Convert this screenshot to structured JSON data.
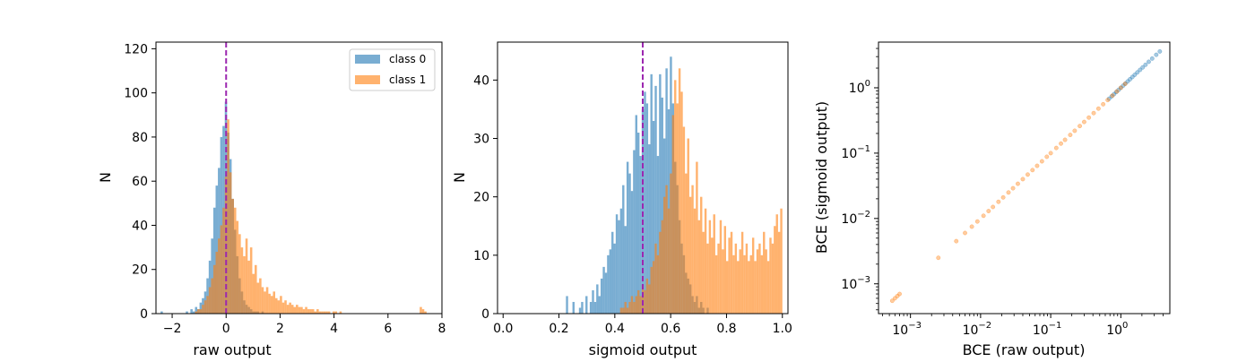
{
  "figure": {
    "panel_count": 3
  },
  "colors": {
    "class0": "#1f77b4",
    "class1": "#ff7f0e",
    "threshold_line": "#9c27b0",
    "axes": "#000000"
  },
  "chart_data": [
    {
      "type": "histogram",
      "title": "",
      "xlabel": "raw output",
      "ylabel": "N",
      "xlim": [
        -2.6,
        8.0
      ],
      "ylim": [
        0,
        123
      ],
      "xticks": [
        -2,
        0,
        2,
        4,
        6,
        8
      ],
      "xtick_labels": [
        "−2",
        "0",
        "2",
        "4",
        "6",
        "8"
      ],
      "yticks": [
        0,
        20,
        40,
        60,
        80,
        100,
        120
      ],
      "ytick_labels": [
        "0",
        "20",
        "40",
        "60",
        "80",
        "100",
        "120"
      ],
      "bin_range": [
        -2.6,
        7.6
      ],
      "bin_count": 120,
      "alpha": 0.6,
      "threshold": 0,
      "threshold_style": "dashed",
      "legend": {
        "placement": "top-right",
        "entries": [
          "class 0",
          "class 1"
        ]
      },
      "series": [
        {
          "name": "class 0",
          "color": "#1f77b4",
          "values": [
            0,
            0,
            1,
            0,
            0,
            0,
            0,
            0,
            0,
            0,
            0,
            0,
            0,
            1,
            0,
            2,
            1,
            3,
            2,
            5,
            7,
            10,
            16,
            24,
            34,
            48,
            58,
            66,
            80,
            85,
            96,
            82,
            70,
            52,
            38,
            26,
            16,
            10,
            6,
            4,
            3,
            2,
            1,
            1,
            1,
            0,
            1,
            0,
            0,
            0,
            0,
            0,
            0,
            0,
            0,
            0,
            0,
            0,
            0,
            0,
            0,
            0,
            0,
            0,
            0,
            0,
            0,
            0,
            0,
            0,
            0,
            0,
            0,
            0,
            0,
            0,
            0,
            0,
            0,
            0,
            0,
            0,
            0,
            0,
            0,
            0,
            0,
            0,
            0,
            0,
            0,
            0,
            0,
            0,
            0,
            0,
            0,
            0,
            0,
            0,
            0,
            0,
            0,
            0,
            0,
            0,
            0,
            0,
            0,
            0,
            0,
            0,
            0,
            0,
            0,
            0,
            0,
            0,
            0,
            0
          ]
        },
        {
          "name": "class 1",
          "color": "#ff7f0e",
          "values": [
            0,
            0,
            0,
            0,
            0,
            0,
            0,
            0,
            0,
            0,
            0,
            0,
            0,
            0,
            0,
            0,
            0,
            1,
            2,
            2,
            4,
            6,
            8,
            12,
            16,
            22,
            28,
            34,
            40,
            48,
            62,
            88,
            64,
            52,
            48,
            42,
            36,
            30,
            26,
            34,
            24,
            30,
            18,
            22,
            14,
            16,
            12,
            10,
            12,
            9,
            8,
            10,
            7,
            6,
            8,
            5,
            6,
            4,
            5,
            4,
            3,
            4,
            3,
            3,
            2,
            3,
            2,
            2,
            2,
            1,
            2,
            1,
            1,
            1,
            1,
            1,
            0,
            1,
            1,
            0,
            1,
            0,
            0,
            0,
            0,
            0,
            0,
            0,
            0,
            0,
            0,
            0,
            0,
            0,
            0,
            0,
            0,
            0,
            0,
            0,
            0,
            0,
            0,
            0,
            0,
            0,
            0,
            0,
            0,
            0,
            0,
            0,
            0,
            0,
            0,
            3,
            2,
            1,
            0,
            0
          ]
        }
      ]
    },
    {
      "type": "histogram",
      "title": "",
      "xlabel": "sigmoid output",
      "ylabel": "N",
      "xlim": [
        -0.02,
        1.02
      ],
      "ylim": [
        0,
        46.5
      ],
      "xticks": [
        0.0,
        0.2,
        0.4,
        0.6,
        0.8,
        1.0
      ],
      "xtick_labels": [
        "0.0",
        "0.2",
        "0.4",
        "0.6",
        "0.8",
        "1.0"
      ],
      "yticks": [
        0,
        10,
        20,
        30,
        40
      ],
      "ytick_labels": [
        "0",
        "10",
        "20",
        "30",
        "40"
      ],
      "bin_range": [
        0.07,
        1.0
      ],
      "bin_count": 120,
      "alpha": 0.6,
      "threshold": 0.5,
      "threshold_style": "dashed",
      "series": [
        {
          "name": "class 0",
          "color": "#1f77b4",
          "values": [
            0,
            0,
            0,
            0,
            0,
            0,
            0,
            0,
            0,
            0,
            0,
            0,
            0,
            0,
            0,
            0,
            0,
            0,
            0,
            0,
            3,
            0,
            0,
            2,
            0,
            0,
            1,
            2,
            0,
            3,
            0,
            2,
            4,
            2,
            5,
            3,
            6,
            8,
            7,
            10,
            11,
            14,
            12,
            17,
            16,
            18,
            22,
            15,
            26,
            24,
            21,
            28,
            34,
            31,
            27,
            35,
            38,
            36,
            29,
            41,
            33,
            39,
            27,
            41,
            37,
            30,
            42,
            35,
            44,
            36,
            26,
            22,
            16,
            12,
            10,
            7,
            6,
            5,
            3,
            2,
            3,
            1,
            2,
            1,
            0,
            1,
            0,
            0,
            0,
            0,
            0,
            0,
            0,
            0,
            0,
            0,
            0,
            0,
            0,
            0,
            0,
            0,
            0,
            0,
            0,
            0,
            0,
            0,
            0,
            0,
            0,
            0,
            0,
            0,
            0,
            0,
            0,
            0,
            0,
            0
          ]
        },
        {
          "name": "class 1",
          "color": "#ff7f0e",
          "values": [
            0,
            0,
            0,
            0,
            0,
            0,
            0,
            0,
            0,
            0,
            0,
            0,
            0,
            0,
            0,
            0,
            0,
            0,
            0,
            0,
            0,
            0,
            0,
            0,
            0,
            0,
            0,
            0,
            0,
            0,
            0,
            0,
            0,
            0,
            0,
            0,
            0,
            0,
            0,
            0,
            0,
            0,
            0,
            0,
            0,
            1,
            1,
            2,
            1,
            2,
            3,
            2,
            3,
            4,
            3,
            5,
            4,
            6,
            5,
            8,
            9,
            12,
            10,
            14,
            16,
            20,
            22,
            18,
            24,
            34,
            40,
            36,
            42,
            38,
            32,
            24,
            30,
            20,
            22,
            18,
            26,
            16,
            20,
            14,
            18,
            12,
            16,
            13,
            17,
            10,
            12,
            16,
            11,
            15,
            9,
            13,
            14,
            10,
            12,
            9,
            11,
            14,
            10,
            12,
            9,
            10,
            13,
            9,
            11,
            12,
            10,
            14,
            11,
            9,
            13,
            12,
            15,
            17,
            14,
            18
          ]
        }
      ]
    },
    {
      "type": "scatter",
      "title": "",
      "xlabel": "BCE (raw output)",
      "ylabel": "BCE (sigmoid output)",
      "xscale": "log",
      "yscale": "log",
      "xlim": [
        0.00035,
        5.0
      ],
      "ylim": [
        0.00035,
        5.0
      ],
      "xticks": [
        0.001,
        0.01,
        0.1,
        1
      ],
      "xtick_labels": [
        [
          "10",
          "−3"
        ],
        [
          "10",
          "−2"
        ],
        [
          "10",
          "−1"
        ],
        [
          "10",
          "0"
        ]
      ],
      "yticks": [
        0.001,
        0.01,
        0.1,
        1
      ],
      "ytick_labels": [
        [
          "10",
          "−3"
        ],
        [
          "10",
          "−2"
        ],
        [
          "10",
          "−1"
        ],
        [
          "10",
          "0"
        ]
      ],
      "alpha": 0.4,
      "series": [
        {
          "name": "class 0",
          "color": "#1f77b4",
          "x": [
            0.68,
            0.74,
            0.8,
            0.86,
            0.93,
            1.0,
            1.08,
            1.16,
            1.25,
            1.35,
            1.46,
            1.58,
            1.72,
            1.88,
            2.05,
            2.25,
            2.5,
            2.8,
            3.2,
            3.6
          ],
          "y": [
            0.68,
            0.74,
            0.8,
            0.86,
            0.93,
            1.0,
            1.08,
            1.16,
            1.25,
            1.35,
            1.46,
            1.58,
            1.72,
            1.88,
            2.05,
            2.25,
            2.5,
            2.8,
            3.2,
            3.6
          ]
        },
        {
          "name": "class 1",
          "color": "#ff7f0e",
          "x": [
            0.00055,
            0.0006,
            0.00065,
            0.0007,
            0.0025,
            0.0045,
            0.006,
            0.0075,
            0.009,
            0.011,
            0.013,
            0.015,
            0.018,
            0.021,
            0.025,
            0.029,
            0.034,
            0.04,
            0.047,
            0.055,
            0.064,
            0.075,
            0.088,
            0.1,
            0.12,
            0.14,
            0.16,
            0.19,
            0.22,
            0.26,
            0.3,
            0.35,
            0.41,
            0.48,
            0.56,
            0.65,
            0.76,
            0.88,
            1.0,
            1.15
          ],
          "y": [
            0.00055,
            0.0006,
            0.00065,
            0.0007,
            0.0025,
            0.0045,
            0.006,
            0.0075,
            0.009,
            0.011,
            0.013,
            0.015,
            0.018,
            0.021,
            0.025,
            0.029,
            0.034,
            0.04,
            0.047,
            0.055,
            0.064,
            0.075,
            0.088,
            0.1,
            0.12,
            0.14,
            0.16,
            0.19,
            0.22,
            0.26,
            0.3,
            0.35,
            0.41,
            0.48,
            0.56,
            0.65,
            0.76,
            0.88,
            1.0,
            1.15
          ]
        }
      ]
    }
  ]
}
